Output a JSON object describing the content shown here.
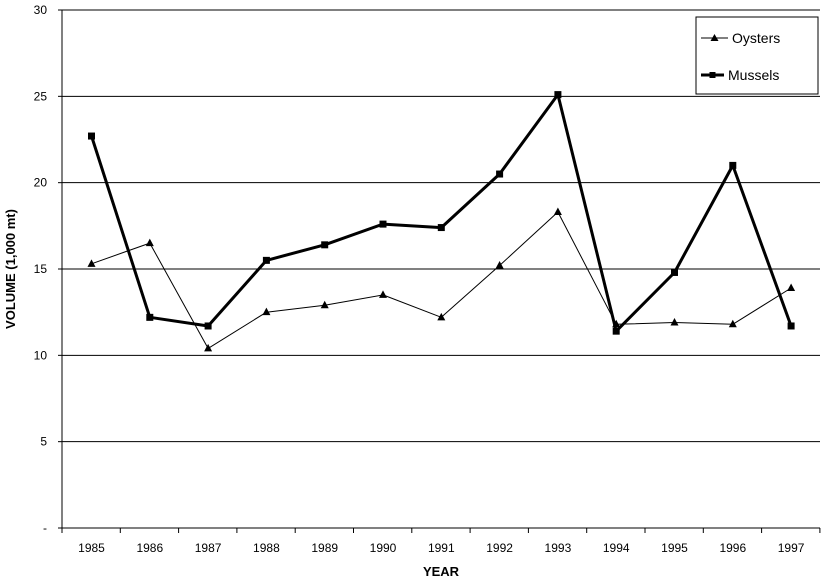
{
  "chart_data": {
    "type": "line",
    "title": "",
    "xlabel": "YEAR",
    "ylabel": "VOLUME (1,000 mt)",
    "categories": [
      "1985",
      "1986",
      "1987",
      "1988",
      "1989",
      "1990",
      "1991",
      "1992",
      "1993",
      "1994",
      "1995",
      "1996",
      "1997"
    ],
    "ylim": [
      0,
      30
    ],
    "y_ticks": [
      0,
      5,
      10,
      15,
      20,
      25,
      30
    ],
    "y_tick_labels": [
      "-",
      "5",
      "10",
      "15",
      "20",
      "25",
      "30"
    ],
    "grid": "horizontal",
    "legend_position": "top-right",
    "series": [
      {
        "name": "Oysters",
        "marker": "triangle",
        "line_style": "thin",
        "color": "#000000",
        "values": [
          15.3,
          16.5,
          10.4,
          12.5,
          12.9,
          13.5,
          12.2,
          15.2,
          18.3,
          11.8,
          11.9,
          11.8,
          13.9
        ]
      },
      {
        "name": "Mussels",
        "marker": "square",
        "line_style": "thick",
        "color": "#000000",
        "values": [
          22.7,
          12.2,
          11.7,
          15.5,
          16.4,
          17.6,
          17.4,
          20.5,
          25.1,
          11.4,
          14.8,
          21.0,
          11.7
        ]
      }
    ]
  }
}
